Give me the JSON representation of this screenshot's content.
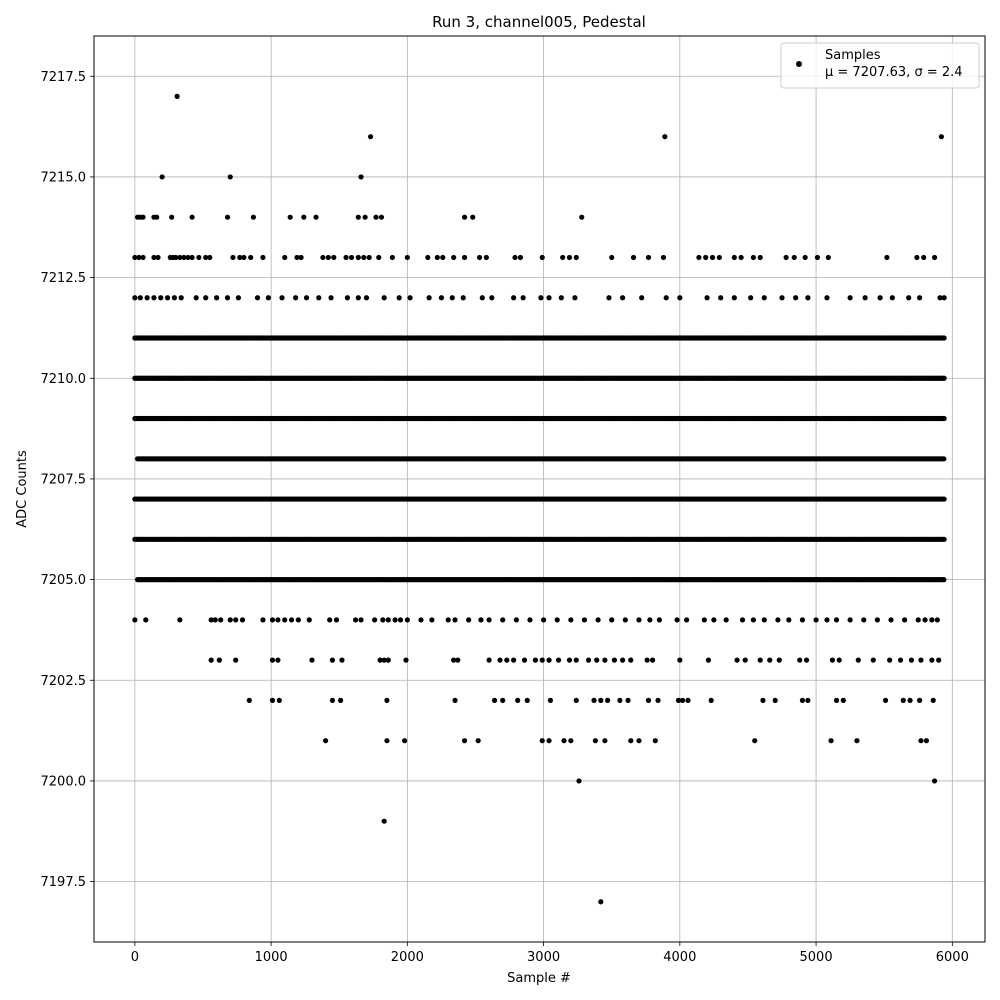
{
  "chart_data": {
    "type": "scatter",
    "title": "Run 3, channel005, Pedestal",
    "xlabel": "Sample #",
    "ylabel": "ADC Counts",
    "xlim": [
      -300,
      6240
    ],
    "ylim": [
      7196.0,
      7218.5
    ],
    "x_ticks": [
      0,
      1000,
      2000,
      3000,
      4000,
      5000,
      6000
    ],
    "y_ticks": [
      7197.5,
      7200.0,
      7202.5,
      7205.0,
      7207.5,
      7210.0,
      7212.5,
      7215.0,
      7217.5
    ],
    "x_tick_labels": [
      "0",
      "1000",
      "2000",
      "3000",
      "4000",
      "5000",
      "6000"
    ],
    "y_tick_labels": [
      "7197.5",
      "7200.0",
      "7202.5",
      "7205.0",
      "7207.5",
      "7210.0",
      "7212.5",
      "7215.0",
      "7217.5"
    ],
    "grid": true,
    "legend_position": "top-right",
    "legend": {
      "label": "Samples",
      "stats": "μ = 7207.63, σ = 2.4"
    },
    "marker_color": "#000000",
    "level_ranges": {
      "7206": [
        [
          0,
          5940
        ]
      ],
      "7207": [
        [
          0,
          5940
        ]
      ],
      "7208": [
        [
          20,
          5940
        ]
      ],
      "7209": [
        [
          0,
          5940
        ]
      ],
      "7210": [
        [
          0,
          5940
        ]
      ],
      "7211": [
        [
          0,
          5940
        ]
      ],
      "7205": [
        [
          20,
          5940
        ]
      ]
    },
    "points": [
      {
        "x": 310,
        "y": 7217
      },
      {
        "x": 1730,
        "y": 7216
      },
      {
        "x": 3890,
        "y": 7216
      },
      {
        "x": 5920,
        "y": 7216
      },
      {
        "x": 200,
        "y": 7215
      },
      {
        "x": 700,
        "y": 7215
      },
      {
        "x": 1660,
        "y": 7215
      },
      {
        "x": 20,
        "y": 7214
      },
      {
        "x": 40,
        "y": 7214
      },
      {
        "x": 60,
        "y": 7214
      },
      {
        "x": 140,
        "y": 7214
      },
      {
        "x": 160,
        "y": 7214
      },
      {
        "x": 270,
        "y": 7214
      },
      {
        "x": 420,
        "y": 7214
      },
      {
        "x": 680,
        "y": 7214
      },
      {
        "x": 870,
        "y": 7214
      },
      {
        "x": 1140,
        "y": 7214
      },
      {
        "x": 1240,
        "y": 7214
      },
      {
        "x": 1330,
        "y": 7214
      },
      {
        "x": 1640,
        "y": 7214
      },
      {
        "x": 1690,
        "y": 7214
      },
      {
        "x": 1770,
        "y": 7214
      },
      {
        "x": 1810,
        "y": 7214
      },
      {
        "x": 2420,
        "y": 7214
      },
      {
        "x": 2480,
        "y": 7214
      },
      {
        "x": 3280,
        "y": 7214
      },
      {
        "x": 0,
        "y": 7213
      },
      {
        "x": 30,
        "y": 7213
      },
      {
        "x": 60,
        "y": 7213
      },
      {
        "x": 140,
        "y": 7213
      },
      {
        "x": 170,
        "y": 7213
      },
      {
        "x": 260,
        "y": 7213
      },
      {
        "x": 280,
        "y": 7213
      },
      {
        "x": 300,
        "y": 7213
      },
      {
        "x": 330,
        "y": 7213
      },
      {
        "x": 360,
        "y": 7213
      },
      {
        "x": 390,
        "y": 7213
      },
      {
        "x": 420,
        "y": 7213
      },
      {
        "x": 470,
        "y": 7213
      },
      {
        "x": 520,
        "y": 7213
      },
      {
        "x": 550,
        "y": 7213
      },
      {
        "x": 720,
        "y": 7213
      },
      {
        "x": 770,
        "y": 7213
      },
      {
        "x": 800,
        "y": 7213
      },
      {
        "x": 850,
        "y": 7213
      },
      {
        "x": 940,
        "y": 7213
      },
      {
        "x": 1100,
        "y": 7213
      },
      {
        "x": 1190,
        "y": 7213
      },
      {
        "x": 1220,
        "y": 7213
      },
      {
        "x": 1380,
        "y": 7213
      },
      {
        "x": 1420,
        "y": 7213
      },
      {
        "x": 1460,
        "y": 7213
      },
      {
        "x": 1550,
        "y": 7213
      },
      {
        "x": 1590,
        "y": 7213
      },
      {
        "x": 1640,
        "y": 7213
      },
      {
        "x": 1680,
        "y": 7213
      },
      {
        "x": 1720,
        "y": 7213
      },
      {
        "x": 1790,
        "y": 7213
      },
      {
        "x": 1890,
        "y": 7213
      },
      {
        "x": 2000,
        "y": 7213
      },
      {
        "x": 2150,
        "y": 7213
      },
      {
        "x": 2220,
        "y": 7213
      },
      {
        "x": 2260,
        "y": 7213
      },
      {
        "x": 2340,
        "y": 7213
      },
      {
        "x": 2420,
        "y": 7213
      },
      {
        "x": 2530,
        "y": 7213
      },
      {
        "x": 2580,
        "y": 7213
      },
      {
        "x": 2790,
        "y": 7213
      },
      {
        "x": 2830,
        "y": 7213
      },
      {
        "x": 2990,
        "y": 7213
      },
      {
        "x": 3140,
        "y": 7213
      },
      {
        "x": 3190,
        "y": 7213
      },
      {
        "x": 3240,
        "y": 7213
      },
      {
        "x": 3500,
        "y": 7213
      },
      {
        "x": 3660,
        "y": 7213
      },
      {
        "x": 3770,
        "y": 7213
      },
      {
        "x": 3880,
        "y": 7213
      },
      {
        "x": 4140,
        "y": 7213
      },
      {
        "x": 4190,
        "y": 7213
      },
      {
        "x": 4240,
        "y": 7213
      },
      {
        "x": 4290,
        "y": 7213
      },
      {
        "x": 4400,
        "y": 7213
      },
      {
        "x": 4450,
        "y": 7213
      },
      {
        "x": 4540,
        "y": 7213
      },
      {
        "x": 4590,
        "y": 7213
      },
      {
        "x": 4780,
        "y": 7213
      },
      {
        "x": 4840,
        "y": 7213
      },
      {
        "x": 4920,
        "y": 7213
      },
      {
        "x": 5010,
        "y": 7213
      },
      {
        "x": 5090,
        "y": 7213
      },
      {
        "x": 5520,
        "y": 7213
      },
      {
        "x": 5740,
        "y": 7213
      },
      {
        "x": 5790,
        "y": 7213
      },
      {
        "x": 5870,
        "y": 7213
      },
      {
        "x": 560,
        "y": 7203
      },
      {
        "x": 620,
        "y": 7203
      },
      {
        "x": 740,
        "y": 7203
      },
      {
        "x": 1010,
        "y": 7203
      },
      {
        "x": 1050,
        "y": 7203
      },
      {
        "x": 1300,
        "y": 7203
      },
      {
        "x": 1450,
        "y": 7203
      },
      {
        "x": 1520,
        "y": 7203
      },
      {
        "x": 1800,
        "y": 7203
      },
      {
        "x": 1830,
        "y": 7203
      },
      {
        "x": 1860,
        "y": 7203
      },
      {
        "x": 1990,
        "y": 7203
      },
      {
        "x": 2340,
        "y": 7203
      },
      {
        "x": 2370,
        "y": 7203
      },
      {
        "x": 2600,
        "y": 7203
      },
      {
        "x": 2680,
        "y": 7203
      },
      {
        "x": 2730,
        "y": 7203
      },
      {
        "x": 2780,
        "y": 7203
      },
      {
        "x": 2860,
        "y": 7203
      },
      {
        "x": 2940,
        "y": 7203
      },
      {
        "x": 2990,
        "y": 7203
      },
      {
        "x": 3040,
        "y": 7203
      },
      {
        "x": 3110,
        "y": 7203
      },
      {
        "x": 3190,
        "y": 7203
      },
      {
        "x": 3240,
        "y": 7203
      },
      {
        "x": 3330,
        "y": 7203
      },
      {
        "x": 3390,
        "y": 7203
      },
      {
        "x": 3450,
        "y": 7203
      },
      {
        "x": 3520,
        "y": 7203
      },
      {
        "x": 3580,
        "y": 7203
      },
      {
        "x": 3640,
        "y": 7203
      },
      {
        "x": 3760,
        "y": 7203
      },
      {
        "x": 3800,
        "y": 7203
      },
      {
        "x": 4000,
        "y": 7203
      },
      {
        "x": 4210,
        "y": 7203
      },
      {
        "x": 4420,
        "y": 7203
      },
      {
        "x": 4480,
        "y": 7203
      },
      {
        "x": 4590,
        "y": 7203
      },
      {
        "x": 4660,
        "y": 7203
      },
      {
        "x": 4730,
        "y": 7203
      },
      {
        "x": 4880,
        "y": 7203
      },
      {
        "x": 4930,
        "y": 7203
      },
      {
        "x": 5120,
        "y": 7203
      },
      {
        "x": 5170,
        "y": 7203
      },
      {
        "x": 5310,
        "y": 7203
      },
      {
        "x": 5420,
        "y": 7203
      },
      {
        "x": 5540,
        "y": 7203
      },
      {
        "x": 5620,
        "y": 7203
      },
      {
        "x": 5700,
        "y": 7203
      },
      {
        "x": 5770,
        "y": 7203
      },
      {
        "x": 5850,
        "y": 7203
      },
      {
        "x": 5900,
        "y": 7203
      },
      {
        "x": 840,
        "y": 7202
      },
      {
        "x": 1010,
        "y": 7202
      },
      {
        "x": 1060,
        "y": 7202
      },
      {
        "x": 1450,
        "y": 7202
      },
      {
        "x": 1510,
        "y": 7202
      },
      {
        "x": 1850,
        "y": 7202
      },
      {
        "x": 2350,
        "y": 7202
      },
      {
        "x": 2640,
        "y": 7202
      },
      {
        "x": 2700,
        "y": 7202
      },
      {
        "x": 2810,
        "y": 7202
      },
      {
        "x": 2880,
        "y": 7202
      },
      {
        "x": 3050,
        "y": 7202
      },
      {
        "x": 3240,
        "y": 7202
      },
      {
        "x": 3370,
        "y": 7202
      },
      {
        "x": 3420,
        "y": 7202
      },
      {
        "x": 3470,
        "y": 7202
      },
      {
        "x": 3560,
        "y": 7202
      },
      {
        "x": 3620,
        "y": 7202
      },
      {
        "x": 3770,
        "y": 7202
      },
      {
        "x": 3840,
        "y": 7202
      },
      {
        "x": 3990,
        "y": 7202
      },
      {
        "x": 4020,
        "y": 7202
      },
      {
        "x": 4060,
        "y": 7202
      },
      {
        "x": 4230,
        "y": 7202
      },
      {
        "x": 4610,
        "y": 7202
      },
      {
        "x": 4700,
        "y": 7202
      },
      {
        "x": 4900,
        "y": 7202
      },
      {
        "x": 4940,
        "y": 7202
      },
      {
        "x": 5150,
        "y": 7202
      },
      {
        "x": 5200,
        "y": 7202
      },
      {
        "x": 5510,
        "y": 7202
      },
      {
        "x": 5640,
        "y": 7202
      },
      {
        "x": 5690,
        "y": 7202
      },
      {
        "x": 5760,
        "y": 7202
      },
      {
        "x": 5860,
        "y": 7202
      },
      {
        "x": 1400,
        "y": 7201
      },
      {
        "x": 1850,
        "y": 7201
      },
      {
        "x": 1980,
        "y": 7201
      },
      {
        "x": 2420,
        "y": 7201
      },
      {
        "x": 2520,
        "y": 7201
      },
      {
        "x": 2990,
        "y": 7201
      },
      {
        "x": 3040,
        "y": 7201
      },
      {
        "x": 3150,
        "y": 7201
      },
      {
        "x": 3200,
        "y": 7201
      },
      {
        "x": 3380,
        "y": 7201
      },
      {
        "x": 3450,
        "y": 7201
      },
      {
        "x": 3640,
        "y": 7201
      },
      {
        "x": 3700,
        "y": 7201
      },
      {
        "x": 3820,
        "y": 7201
      },
      {
        "x": 4550,
        "y": 7201
      },
      {
        "x": 5110,
        "y": 7201
      },
      {
        "x": 5300,
        "y": 7201
      },
      {
        "x": 5770,
        "y": 7201
      },
      {
        "x": 5810,
        "y": 7201
      },
      {
        "x": 3260,
        "y": 7200
      },
      {
        "x": 5870,
        "y": 7200
      },
      {
        "x": 1830,
        "y": 7199
      },
      {
        "x": 3420,
        "y": 7197
      },
      {
        "x": 0,
        "y": 7204
      },
      {
        "x": 80,
        "y": 7204
      },
      {
        "x": 330,
        "y": 7204
      },
      {
        "x": 560,
        "y": 7204
      },
      {
        "x": 590,
        "y": 7204
      },
      {
        "x": 630,
        "y": 7204
      },
      {
        "x": 700,
        "y": 7204
      },
      {
        "x": 740,
        "y": 7204
      },
      {
        "x": 790,
        "y": 7204
      },
      {
        "x": 940,
        "y": 7204
      },
      {
        "x": 1010,
        "y": 7204
      },
      {
        "x": 1050,
        "y": 7204
      },
      {
        "x": 1100,
        "y": 7204
      },
      {
        "x": 1150,
        "y": 7204
      },
      {
        "x": 1200,
        "y": 7204
      },
      {
        "x": 1280,
        "y": 7204
      },
      {
        "x": 1430,
        "y": 7204
      },
      {
        "x": 1480,
        "y": 7204
      },
      {
        "x": 1620,
        "y": 7204
      },
      {
        "x": 1660,
        "y": 7204
      },
      {
        "x": 1760,
        "y": 7204
      },
      {
        "x": 1820,
        "y": 7204
      },
      {
        "x": 1860,
        "y": 7204
      },
      {
        "x": 1910,
        "y": 7204
      },
      {
        "x": 1950,
        "y": 7204
      },
      {
        "x": 2000,
        "y": 7204
      },
      {
        "x": 2100,
        "y": 7204
      },
      {
        "x": 2180,
        "y": 7204
      },
      {
        "x": 2300,
        "y": 7204
      },
      {
        "x": 2350,
        "y": 7204
      },
      {
        "x": 2450,
        "y": 7204
      },
      {
        "x": 2540,
        "y": 7204
      },
      {
        "x": 2600,
        "y": 7204
      },
      {
        "x": 2700,
        "y": 7204
      },
      {
        "x": 2800,
        "y": 7204
      },
      {
        "x": 2900,
        "y": 7204
      },
      {
        "x": 3000,
        "y": 7204
      },
      {
        "x": 3100,
        "y": 7204
      },
      {
        "x": 3200,
        "y": 7204
      },
      {
        "x": 3300,
        "y": 7204
      },
      {
        "x": 3400,
        "y": 7204
      },
      {
        "x": 3500,
        "y": 7204
      },
      {
        "x": 3600,
        "y": 7204
      },
      {
        "x": 3700,
        "y": 7204
      },
      {
        "x": 3780,
        "y": 7204
      },
      {
        "x": 3850,
        "y": 7204
      },
      {
        "x": 3980,
        "y": 7204
      },
      {
        "x": 4050,
        "y": 7204
      },
      {
        "x": 4180,
        "y": 7204
      },
      {
        "x": 4250,
        "y": 7204
      },
      {
        "x": 4340,
        "y": 7204
      },
      {
        "x": 4460,
        "y": 7204
      },
      {
        "x": 4540,
        "y": 7204
      },
      {
        "x": 4620,
        "y": 7204
      },
      {
        "x": 4720,
        "y": 7204
      },
      {
        "x": 4800,
        "y": 7204
      },
      {
        "x": 4900,
        "y": 7204
      },
      {
        "x": 5000,
        "y": 7204
      },
      {
        "x": 5080,
        "y": 7204
      },
      {
        "x": 5150,
        "y": 7204
      },
      {
        "x": 5250,
        "y": 7204
      },
      {
        "x": 5350,
        "y": 7204
      },
      {
        "x": 5450,
        "y": 7204
      },
      {
        "x": 5550,
        "y": 7204
      },
      {
        "x": 5650,
        "y": 7204
      },
      {
        "x": 5750,
        "y": 7204
      },
      {
        "x": 5800,
        "y": 7204
      },
      {
        "x": 5850,
        "y": 7204
      },
      {
        "x": 5890,
        "y": 7204
      },
      {
        "x": 0,
        "y": 7212
      },
      {
        "x": 40,
        "y": 7212
      },
      {
        "x": 90,
        "y": 7212
      },
      {
        "x": 140,
        "y": 7212
      },
      {
        "x": 190,
        "y": 7212
      },
      {
        "x": 240,
        "y": 7212
      },
      {
        "x": 290,
        "y": 7212
      },
      {
        "x": 340,
        "y": 7212
      },
      {
        "x": 450,
        "y": 7212
      },
      {
        "x": 520,
        "y": 7212
      },
      {
        "x": 600,
        "y": 7212
      },
      {
        "x": 680,
        "y": 7212
      },
      {
        "x": 760,
        "y": 7212
      },
      {
        "x": 900,
        "y": 7212
      },
      {
        "x": 980,
        "y": 7212
      },
      {
        "x": 1080,
        "y": 7212
      },
      {
        "x": 1180,
        "y": 7212
      },
      {
        "x": 1260,
        "y": 7212
      },
      {
        "x": 1350,
        "y": 7212
      },
      {
        "x": 1440,
        "y": 7212
      },
      {
        "x": 1560,
        "y": 7212
      },
      {
        "x": 1640,
        "y": 7212
      },
      {
        "x": 1700,
        "y": 7212
      },
      {
        "x": 1830,
        "y": 7212
      },
      {
        "x": 1940,
        "y": 7212
      },
      {
        "x": 2020,
        "y": 7212
      },
      {
        "x": 2160,
        "y": 7212
      },
      {
        "x": 2250,
        "y": 7212
      },
      {
        "x": 2330,
        "y": 7212
      },
      {
        "x": 2410,
        "y": 7212
      },
      {
        "x": 2550,
        "y": 7212
      },
      {
        "x": 2620,
        "y": 7212
      },
      {
        "x": 2780,
        "y": 7212
      },
      {
        "x": 2850,
        "y": 7212
      },
      {
        "x": 2980,
        "y": 7212
      },
      {
        "x": 3040,
        "y": 7212
      },
      {
        "x": 3130,
        "y": 7212
      },
      {
        "x": 3230,
        "y": 7212
      },
      {
        "x": 3480,
        "y": 7212
      },
      {
        "x": 3580,
        "y": 7212
      },
      {
        "x": 3720,
        "y": 7212
      },
      {
        "x": 3900,
        "y": 7212
      },
      {
        "x": 4000,
        "y": 7212
      },
      {
        "x": 4200,
        "y": 7212
      },
      {
        "x": 4300,
        "y": 7212
      },
      {
        "x": 4400,
        "y": 7212
      },
      {
        "x": 4520,
        "y": 7212
      },
      {
        "x": 4620,
        "y": 7212
      },
      {
        "x": 4750,
        "y": 7212
      },
      {
        "x": 4850,
        "y": 7212
      },
      {
        "x": 4940,
        "y": 7212
      },
      {
        "x": 5080,
        "y": 7212
      },
      {
        "x": 5250,
        "y": 7212
      },
      {
        "x": 5360,
        "y": 7212
      },
      {
        "x": 5470,
        "y": 7212
      },
      {
        "x": 5560,
        "y": 7212
      },
      {
        "x": 5680,
        "y": 7212
      },
      {
        "x": 5760,
        "y": 7212
      },
      {
        "x": 5910,
        "y": 7212
      },
      {
        "x": 5940,
        "y": 7212
      }
    ]
  }
}
